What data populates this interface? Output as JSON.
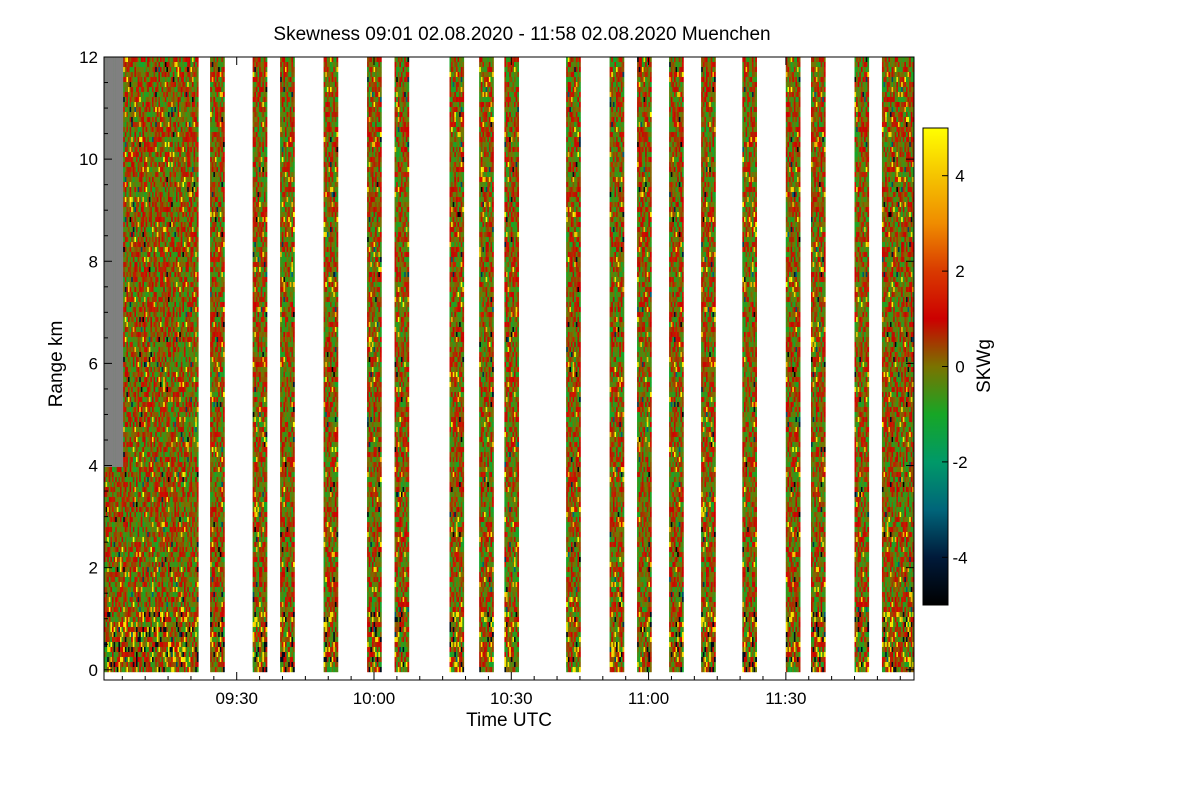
{
  "chart_data": {
    "type": "heatmap",
    "title": "Skewness   09:01 02.08.2020 - 11:58 02.08.2020 Muenchen",
    "xlabel": "Time UTC",
    "ylabel": "Range km",
    "x_range_minutes": [
      541,
      718
    ],
    "y_range_km": [
      -0.2,
      12.0
    ],
    "x_ticks": [
      {
        "minute": 570,
        "label": "09:30"
      },
      {
        "minute": 600,
        "label": "10:00"
      },
      {
        "minute": 630,
        "label": "10:30"
      },
      {
        "minute": 660,
        "label": "11:00"
      },
      {
        "minute": 690,
        "label": "11:30"
      }
    ],
    "y_ticks": [
      {
        "value": 0,
        "label": "0"
      },
      {
        "value": 2,
        "label": "2"
      },
      {
        "value": 4,
        "label": "4"
      },
      {
        "value": 6,
        "label": "6"
      },
      {
        "value": 8,
        "label": "8"
      },
      {
        "value": 10,
        "label": "10"
      },
      {
        "value": 12,
        "label": "12"
      }
    ],
    "data_range_km": [
      0.05,
      12.0
    ],
    "measurement_segments_minutes": [
      [
        541.0,
        561.4
      ],
      [
        564.2,
        567.3
      ],
      [
        573.5,
        576.6
      ],
      [
        579.5,
        582.6
      ],
      [
        589.0,
        592.0
      ],
      [
        598.5,
        601.3
      ],
      [
        604.5,
        607.6
      ],
      [
        616.5,
        619.6
      ],
      [
        623.0,
        626.0
      ],
      [
        628.5,
        631.6
      ],
      [
        642.0,
        645.0
      ],
      [
        651.5,
        654.5
      ],
      [
        657.5,
        660.5
      ],
      [
        664.5,
        667.6
      ],
      [
        671.5,
        674.6
      ],
      [
        680.5,
        683.5
      ],
      [
        690.0,
        693.0
      ],
      [
        695.5,
        698.5
      ],
      [
        705.0,
        708.0
      ],
      [
        711.0,
        718.0
      ]
    ],
    "colorbar": {
      "label": "SKWg",
      "range": [
        -5,
        5
      ],
      "ticks": [
        {
          "value": 4,
          "label": "4"
        },
        {
          "value": 2,
          "label": "2"
        },
        {
          "value": 0,
          "label": "0"
        },
        {
          "value": -2,
          "label": "-2"
        },
        {
          "value": -4,
          "label": "-4"
        }
      ],
      "stops": [
        {
          "value": -5,
          "color": "#000000"
        },
        {
          "value": -4,
          "color": "#001a3a"
        },
        {
          "value": -3,
          "color": "#00657a"
        },
        {
          "value": -2,
          "color": "#009968"
        },
        {
          "value": -1,
          "color": "#17a626"
        },
        {
          "value": 0,
          "color": "#7a7300"
        },
        {
          "value": 1,
          "color": "#cc0000"
        },
        {
          "value": 2,
          "color": "#d93a00"
        },
        {
          "value": 3,
          "color": "#ef8c00"
        },
        {
          "value": 4,
          "color": "#f5c400"
        },
        {
          "value": 5,
          "color": "#ffff00"
        }
      ]
    },
    "no_data_color": "#808080"
  }
}
